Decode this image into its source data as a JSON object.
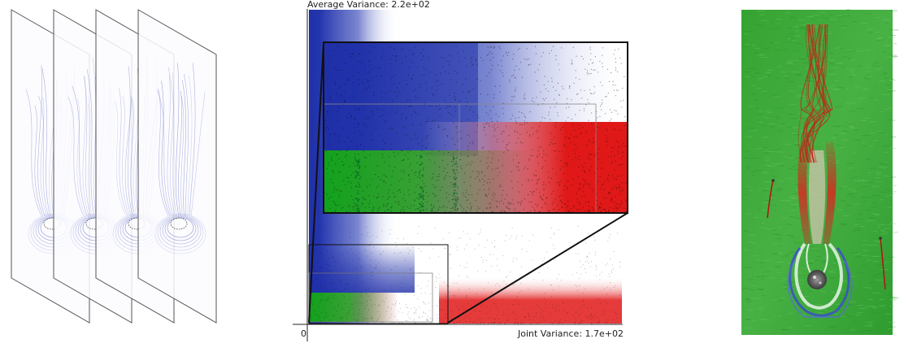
{
  "left_panel": {
    "slices": [
      "slice-1",
      "slice-2",
      "slice-3",
      "slice-4"
    ],
    "slice_color": "#6b74c4"
  },
  "center_panel": {
    "top_label": "Average Variance: 2.2e+02",
    "bottom_label": "Joint Variance: 1.7e+02",
    "origin_label": "0",
    "colors": {
      "low_avg_high_joint": "#1e2fa6",
      "high_joint": "#e01818",
      "mid": "#14a41e",
      "points": "#000000"
    }
  },
  "right_panel": {
    "background_color": "#3daa3a",
    "streamline_warm": "#d01a14",
    "streamline_cool": "#3a4bd0"
  }
}
